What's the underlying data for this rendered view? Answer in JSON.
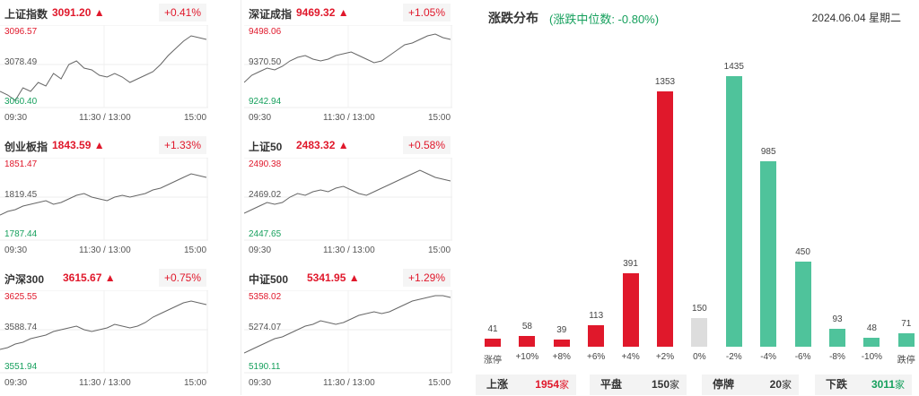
{
  "indices": [
    {
      "name": "上证指数",
      "price": "3091.20",
      "arrow": "▲",
      "pct": "+0.41%",
      "high": "3096.57",
      "mid": "3078.49",
      "low": "3060.40",
      "t_start": "09:30",
      "t_mid": "11:30 / 13:00",
      "t_end": "15:00"
    },
    {
      "name": "深证成指",
      "price": "9469.32",
      "arrow": "▲",
      "pct": "+1.05%",
      "high": "9498.06",
      "mid": "9370.50",
      "low": "9242.94",
      "t_start": "09:30",
      "t_mid": "11:30 / 13:00",
      "t_end": "15:00"
    },
    {
      "name": "创业板指",
      "price": "1843.59",
      "arrow": "▲",
      "pct": "+1.33%",
      "high": "1851.47",
      "mid": "1819.45",
      "low": "1787.44",
      "t_start": "09:30",
      "t_mid": "11:30 / 13:00",
      "t_end": "15:00"
    },
    {
      "name": "上证50",
      "price": "2483.32",
      "arrow": "▲",
      "pct": "+0.58%",
      "high": "2490.38",
      "mid": "2469.02",
      "low": "2447.65",
      "t_start": "09:30",
      "t_mid": "11:30 / 13:00",
      "t_end": "15:00"
    },
    {
      "name": "沪深300",
      "price": "3615.67",
      "arrow": "▲",
      "pct": "+0.75%",
      "high": "3625.55",
      "mid": "3588.74",
      "low": "3551.94",
      "t_start": "09:30",
      "t_mid": "11:30 / 13:00",
      "t_end": "15:00"
    },
    {
      "name": "中证500",
      "price": "5341.95",
      "arrow": "▲",
      "pct": "+1.29%",
      "high": "5358.02",
      "mid": "5274.07",
      "low": "5190.11",
      "t_start": "09:30",
      "t_mid": "11:30 / 13:00",
      "t_end": "15:00"
    }
  ],
  "distribution": {
    "title": "涨跌分布",
    "subtitle": "(涨跌中位数: -0.80%)",
    "date": "2024.06.04 星期二"
  },
  "chart_data": {
    "type": "bar",
    "categories": [
      "涨停",
      "+10%",
      "+8%",
      "+6%",
      "+4%",
      "+2%",
      "0%",
      "-2%",
      "-4%",
      "-6%",
      "-8%",
      "-10%",
      "跌停"
    ],
    "values": [
      41,
      58,
      39,
      113,
      391,
      1353,
      150,
      1435,
      985,
      450,
      93,
      48,
      71
    ],
    "colors": [
      "#e0182b",
      "#e0182b",
      "#e0182b",
      "#e0182b",
      "#e0182b",
      "#e0182b",
      "#dddddd",
      "#4fc39b",
      "#4fc39b",
      "#4fc39b",
      "#4fc39b",
      "#4fc39b",
      "#4fc39b"
    ],
    "ylim": [
      0,
      1435
    ]
  },
  "summary": {
    "up": {
      "label": "上涨",
      "value": "1954",
      "unit": "家",
      "color": "#e0182b"
    },
    "flat": {
      "label": "平盘",
      "value": "150",
      "unit": "家",
      "color": "#333333"
    },
    "halt": {
      "label": "停牌",
      "value": "20",
      "unit": "家",
      "color": "#333333"
    },
    "down": {
      "label": "下跌",
      "value": "3011",
      "unit": "家",
      "color": "#16a05d"
    }
  }
}
